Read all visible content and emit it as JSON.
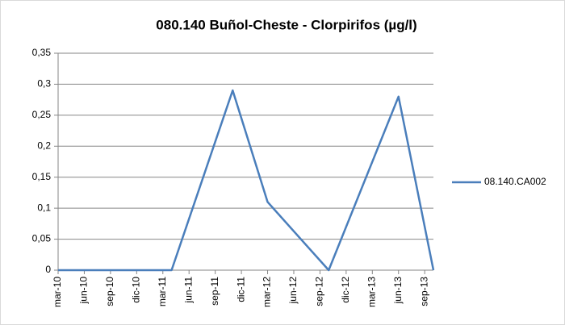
{
  "chart_data": {
    "type": "line",
    "title": "080.140 Buñol-Cheste  - Clorpirifos (µg/l)",
    "x": [
      0,
      13,
      20,
      24,
      31,
      39,
      43
    ],
    "series": [
      {
        "name": "08.140.CA002",
        "color": "#4a7ebb",
        "values": [
          0,
          0,
          0.29,
          0.11,
          0,
          0.28,
          0
        ]
      }
    ],
    "xlim": [
      0,
      43
    ],
    "xticks": [
      {
        "value": 0,
        "label": "mar-10"
      },
      {
        "value": 3,
        "label": "jun-10"
      },
      {
        "value": 6,
        "label": "sep-10"
      },
      {
        "value": 9,
        "label": "dic-10"
      },
      {
        "value": 12,
        "label": "mar-11"
      },
      {
        "value": 15,
        "label": "jun-11"
      },
      {
        "value": 18,
        "label": "sep-11"
      },
      {
        "value": 21,
        "label": "dic-11"
      },
      {
        "value": 24,
        "label": "mar-12"
      },
      {
        "value": 27,
        "label": "jun-12"
      },
      {
        "value": 30,
        "label": "sep-12"
      },
      {
        "value": 33,
        "label": "dic-12"
      },
      {
        "value": 36,
        "label": "mar-13"
      },
      {
        "value": 39,
        "label": "jun-13"
      },
      {
        "value": 42,
        "label": "sep-13"
      }
    ],
    "ylim": [
      0,
      0.35
    ],
    "yticks": [
      0,
      {
        "value": 0.05,
        "label": "0,05"
      },
      {
        "value": 0.1,
        "label": "0,1"
      },
      {
        "value": 0.15,
        "label": "0,15"
      },
      {
        "value": 0.2,
        "label": "0,2"
      },
      {
        "value": 0.25,
        "label": "0,25"
      },
      {
        "value": 0.3,
        "label": "0,3"
      },
      {
        "value": 0.35,
        "label": "0,35"
      }
    ],
    "grid": true,
    "legend": "right"
  }
}
